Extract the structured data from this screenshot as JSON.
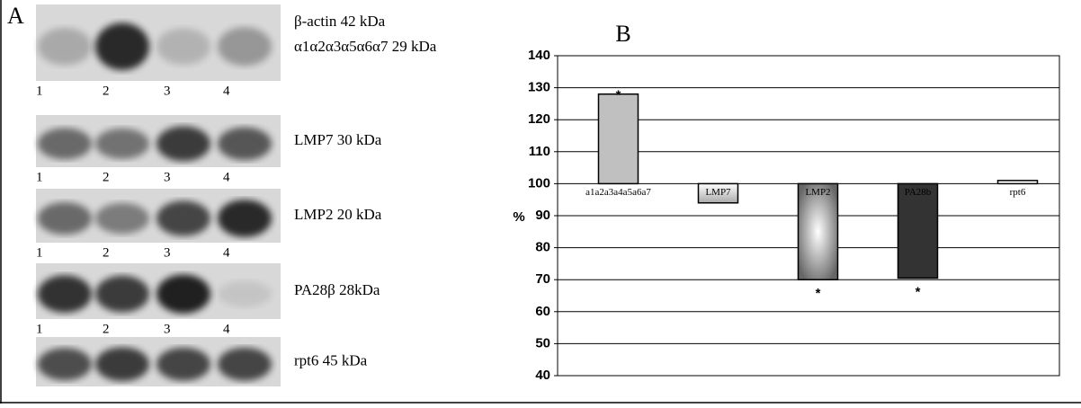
{
  "panel_a": {
    "label": "A",
    "blots": [
      {
        "labels": [
          "β-actin  42 kDa",
          "α1α2α3α5α6α7 29 kDa"
        ],
        "lanes": [
          "1",
          "2",
          "3",
          "4"
        ]
      },
      {
        "labels": [
          "LMP7 30 kDa"
        ],
        "lanes": [
          "1",
          "2",
          "3",
          "4"
        ]
      },
      {
        "labels": [
          "LMP2 20 kDa"
        ],
        "lanes": [
          "1",
          "2",
          "3",
          "4"
        ]
      },
      {
        "labels": [
          "PA28β 28kDa"
        ],
        "lanes": [
          "1",
          "2",
          "3",
          "4"
        ]
      },
      {
        "labels": [
          "rpt6 45 kDa"
        ]
      }
    ]
  },
  "chart_data": {
    "type": "bar",
    "panel_label": "B",
    "y_label": "%",
    "categories": [
      "a1a2a3a4a5a6a7",
      "LMP7",
      "LMP2",
      "PA28b",
      "rpt6"
    ],
    "values": [
      128,
      94,
      70,
      70.5,
      101
    ],
    "colors": [
      "#c0c0c0",
      "url(#gLmp7)",
      "url(#gLmp2)",
      "#333333",
      "#ffffff"
    ],
    "baseline": 100,
    "annotations": [
      "*",
      "*",
      "*"
    ],
    "ylim": [
      40,
      140
    ],
    "yticks": [
      40,
      50,
      60,
      70,
      80,
      90,
      100,
      110,
      120,
      130,
      140
    ],
    "grid": true
  }
}
